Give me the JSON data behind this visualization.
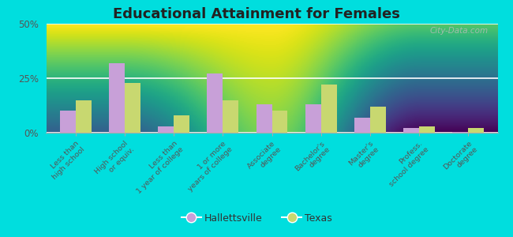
{
  "title": "Educational Attainment for Females",
  "categories": [
    "Less than\nhigh school",
    "High school\nor equiv.",
    "Less than\n1 year of college",
    "1 or more\nyears of college",
    "Associate\ndegree",
    "Bachelor's\ndegree",
    "Master's\ndegree",
    "Profess.\nschool degree",
    "Doctorate\ndegree"
  ],
  "hallettsville": [
    10,
    32,
    3,
    27,
    13,
    13,
    7,
    2,
    0.5
  ],
  "texas": [
    15,
    23,
    8,
    15,
    10,
    22,
    12,
    3,
    2
  ],
  "hallettsville_color": "#c8a0d8",
  "texas_color": "#c8d870",
  "background_top": "#f5f5e8",
  "background_bottom": "#d8ecc8",
  "outer_background": "#00dede",
  "ylim": [
    0,
    50
  ],
  "yticks": [
    0,
    25,
    50
  ],
  "ytick_labels": [
    "0%",
    "25%",
    "50%"
  ],
  "bar_width": 0.32,
  "watermark": "City-Data.com"
}
